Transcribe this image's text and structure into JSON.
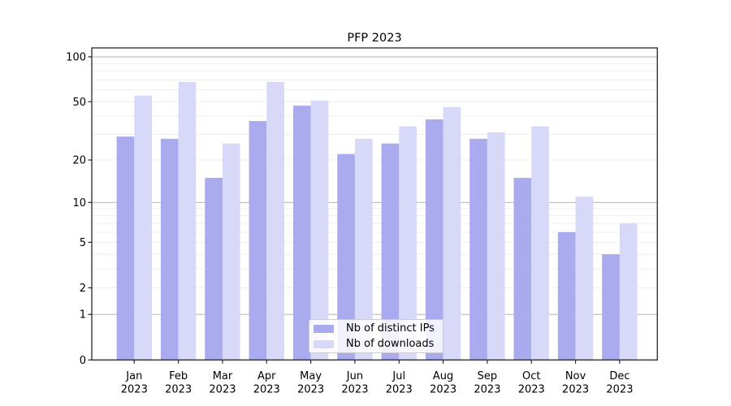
{
  "chart_data": {
    "type": "bar",
    "title": "PFP 2023",
    "scale": "log(value+1)",
    "categories": [
      "Jan",
      "Feb",
      "Mar",
      "Apr",
      "May",
      "Jun",
      "Jul",
      "Aug",
      "Sep",
      "Oct",
      "Nov",
      "Dec"
    ],
    "year_label": "2023",
    "series": [
      {
        "name": "Nb of distinct IPs",
        "color": "#aaaaee",
        "values": [
          29,
          28,
          15,
          37,
          47,
          22,
          26,
          38,
          28,
          15,
          6,
          4
        ]
      },
      {
        "name": "Nb of downloads",
        "color": "#d8d8f8",
        "values": [
          55,
          68,
          26,
          68,
          51,
          28,
          34,
          46,
          31,
          34,
          11,
          7
        ]
      }
    ],
    "ylim": [
      0,
      115
    ],
    "yticks": [
      100,
      50,
      20,
      10,
      5,
      2,
      1,
      0
    ],
    "grid": {
      "major": [
        1,
        10,
        100
      ],
      "minor": [
        2,
        3,
        4,
        5,
        6,
        7,
        8,
        9,
        20,
        30,
        40,
        50,
        60,
        70,
        80,
        90
      ]
    },
    "legend_position": "lower center",
    "colors": {
      "major_grid": "#b5b5b5",
      "minor_grid": "#ececec",
      "axis": "#262626",
      "text": "#000000"
    }
  }
}
